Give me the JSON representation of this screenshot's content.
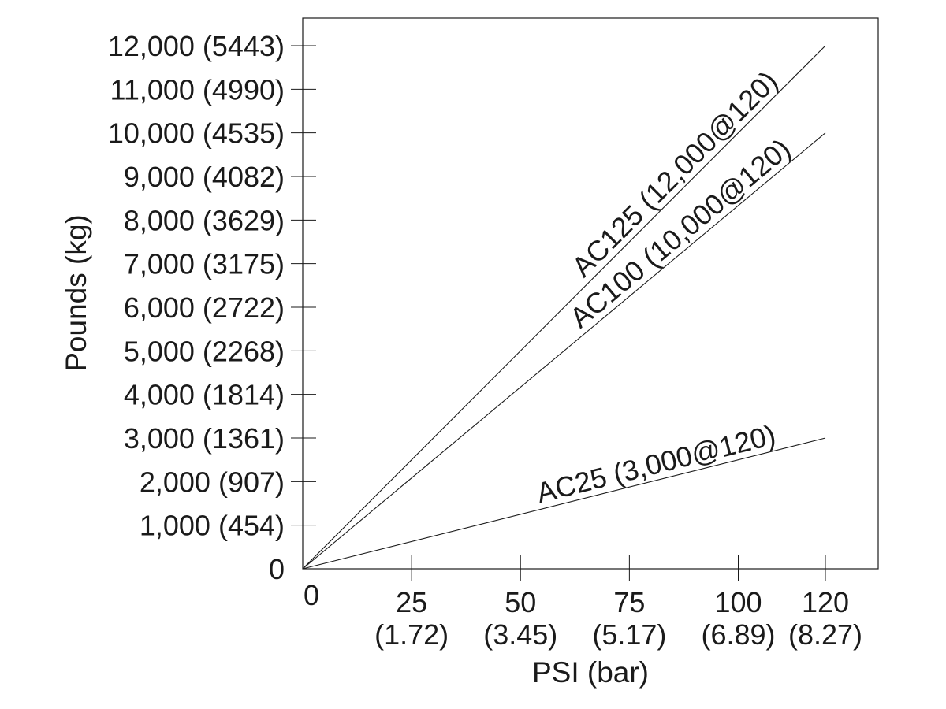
{
  "chart_data": {
    "type": "line",
    "title": "",
    "xlabel": "PSI (bar)",
    "ylabel": "Pounds (kg)",
    "xlim": [
      0,
      132
    ],
    "ylim": [
      0,
      12000
    ],
    "grid": false,
    "legend": "none",
    "x_ticks": [
      {
        "value": 0,
        "label": "0",
        "label2": ""
      },
      {
        "value": 25,
        "label": "25",
        "label2": "(1.72)"
      },
      {
        "value": 50,
        "label": "50",
        "label2": "(3.45)"
      },
      {
        "value": 75,
        "label": "75",
        "label2": "(5.17)"
      },
      {
        "value": 100,
        "label": "100",
        "label2": "(6.89)"
      },
      {
        "value": 120,
        "label": "120",
        "label2": "(8.27)"
      }
    ],
    "y_ticks": [
      {
        "value": 0,
        "label": "0"
      },
      {
        "value": 1000,
        "label": "1,000 (454)"
      },
      {
        "value": 2000,
        "label": "2,000 (907)"
      },
      {
        "value": 3000,
        "label": "3,000 (1361)"
      },
      {
        "value": 4000,
        "label": "4,000 (1814)"
      },
      {
        "value": 5000,
        "label": "5,000 (2268)"
      },
      {
        "value": 6000,
        "label": "6,000 (2722)"
      },
      {
        "value": 7000,
        "label": "7,000 (3175)"
      },
      {
        "value": 8000,
        "label": "8,000 (3629)"
      },
      {
        "value": 9000,
        "label": "9,000 (4082)"
      },
      {
        "value": 10000,
        "label": "10,000 (4535)"
      },
      {
        "value": 11000,
        "label": "11,000 (4990)"
      },
      {
        "value": 12000,
        "label": "12,000 (5443)"
      }
    ],
    "series": [
      {
        "name": "AC125 (12,000@120)",
        "x": [
          0,
          120
        ],
        "y": [
          0,
          12000
        ],
        "label_at_x": 88
      },
      {
        "name": "AC100 (10,000@120)",
        "x": [
          0,
          120
        ],
        "y": [
          0,
          10000
        ],
        "label_at_x": 89
      },
      {
        "name": "AC25 (3,000@120)",
        "x": [
          0,
          120
        ],
        "y": [
          0,
          3000
        ],
        "label_at_x": 82
      }
    ]
  }
}
